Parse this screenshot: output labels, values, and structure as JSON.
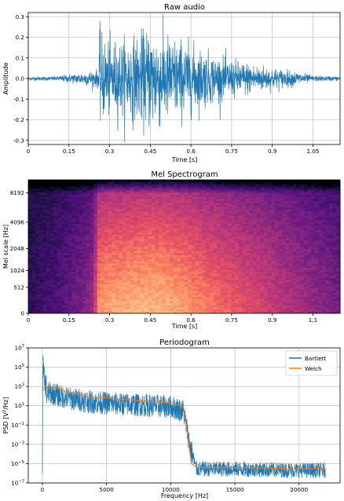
{
  "chart_data": [
    {
      "type": "line",
      "title": "Raw audio",
      "xlabel": "Time [s]",
      "ylabel": "Amplitude",
      "xlim": [
        0,
        1.15
      ],
      "ylim": [
        -0.32,
        0.32
      ],
      "xticks": [
        0,
        0.15,
        0.3,
        0.45,
        0.6,
        0.75,
        0.9,
        1.05
      ],
      "xtick_labels": [
        "0",
        "0.15",
        "0.3",
        "0.45",
        "0.6",
        "0.75",
        "0.9",
        "1.05"
      ],
      "yticks": [
        0.3,
        0.2,
        0.1,
        0.0,
        -0.1,
        -0.2,
        -0.3
      ],
      "ytick_labels": [
        "0.3",
        "0.2",
        "0.1",
        "0.0",
        "-0.1",
        "-0.2",
        "-0.3"
      ],
      "grid": true,
      "series": [
        {
          "color": "#1f77b4",
          "envelope": {
            "t": [
              0,
              0.1,
              0.16,
              0.22,
              0.26,
              0.261,
              0.3,
              0.4,
              0.46,
              0.5,
              0.6,
              0.7,
              0.8,
              0.9,
              1.0,
              1.05,
              1.15
            ],
            "peak": [
              0.01,
              0.012,
              0.025,
              0.04,
              0.05,
              0.25,
              0.2,
              0.23,
              0.29,
              0.25,
              0.19,
              0.12,
              0.09,
              0.06,
              0.035,
              0.015,
              0.012
            ]
          }
        }
      ]
    },
    {
      "type": "heatmap",
      "title": "Mel Spectrogram",
      "xlabel": "Time [s]",
      "ylabel": "Mel scale [Hz]",
      "xlim": [
        0,
        1.15
      ],
      "xticks": [
        0,
        0.15,
        0.3,
        0.45,
        0.6,
        0.75,
        0.9,
        1.05
      ],
      "xtick_labels": [
        "0",
        "0.15",
        "0.3",
        "0.45",
        "0.6",
        "0.75",
        "0.9",
        "1.1"
      ],
      "ytick_hz": [
        0,
        512,
        1024,
        2048,
        4096,
        8192
      ],
      "ytick_labels": [
        "0",
        "512",
        "1024",
        "2048",
        "4096",
        "8192"
      ],
      "fmax_hz": 11025,
      "colormap": "magma",
      "colors": {
        "low": "#1a0f3c",
        "mid": "#c83c62",
        "high": "#fcd08f"
      }
    },
    {
      "type": "line",
      "title": "Periodogram",
      "xlabel": "Frequency [Hz]",
      "ylabel": "PSD [V²/Hz]",
      "ylabel_main": "PSD [V",
      "ylabel_sup": "2",
      "ylabel_tail": "/Hz]",
      "yscale": "log",
      "xlim": [
        -1100,
        23200
      ],
      "ylim": [
        1e-07,
        10000000.0
      ],
      "xticks": [
        0,
        5000,
        10000,
        15000,
        20000
      ],
      "xtick_labels": [
        "0",
        "5000",
        "10000",
        "15000",
        "20000"
      ],
      "yticks_exp": [
        7,
        5,
        3,
        1,
        -1,
        -3,
        -5,
        -7
      ],
      "ytick_base": "10",
      "ytick_exps": [
        "7",
        "5",
        "3",
        "1",
        "−1",
        "−3",
        "−5",
        "−7"
      ],
      "grid": true,
      "legend_position": "top-right",
      "series": [
        {
          "name": "Bartlett",
          "color": "#1f77b4",
          "x": [
            0,
            200,
            500,
            1000,
            2000,
            4000,
            6000,
            8000,
            10000,
            11000,
            11500,
            12000,
            15000,
            20000,
            22000
          ],
          "y": [
            100000,
            100,
            300,
            200,
            80,
            30,
            20,
            15,
            10,
            4,
            0.001,
            4e-06,
            4e-06,
            3e-06,
            3e-06
          ]
        },
        {
          "name": "Welch",
          "color": "#ff7f0e",
          "x": [
            0,
            200,
            500,
            1000,
            2000,
            4000,
            6000,
            8000,
            10000,
            11000,
            11300,
            11600,
            12000,
            15000,
            20000,
            22000
          ],
          "y": [
            300,
            1000,
            600,
            800,
            250,
            80,
            50,
            30,
            20,
            8,
            0.01,
            1e-05,
            4e-06,
            4e-06,
            3e-06,
            3e-06
          ]
        }
      ]
    }
  ]
}
